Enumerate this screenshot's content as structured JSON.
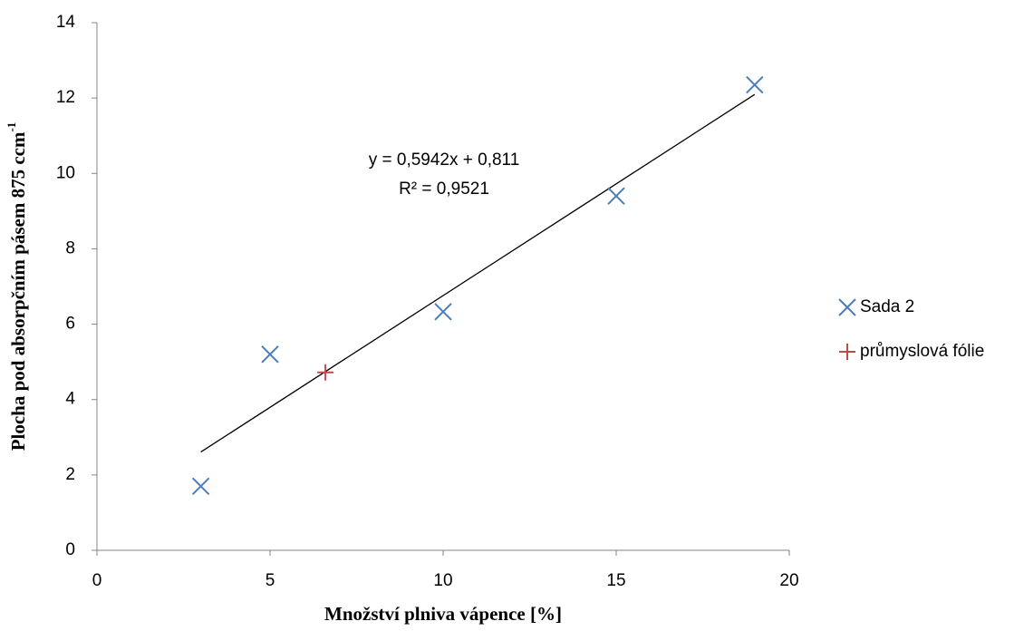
{
  "chart_data": {
    "type": "scatter",
    "xlabel": "Množství plniva vápence [%]",
    "ylabel": "Plocha pod absorpčním pásem 875 ccm",
    "ylabel_superscript": "-1",
    "series": [
      {
        "name": "Sada 2",
        "color": "#4a7ebb",
        "marker": "x",
        "x": [
          3,
          5,
          10,
          15,
          19
        ],
        "values": [
          1.7,
          5.2,
          6.33,
          9.4,
          12.35
        ],
        "trendline": true
      },
      {
        "name": "průmyslová fólie",
        "color": "#be4b48",
        "marker": "+",
        "x": [
          6.6
        ],
        "values": [
          4.72
        ]
      }
    ],
    "annotations": [
      "y = 0,5942x + 0,811",
      "R² = 0,9521"
    ],
    "xlim": [
      0,
      20
    ],
    "xticks": [
      0,
      5,
      10,
      15,
      20
    ],
    "ylim": [
      0,
      14
    ],
    "yticks": [
      0,
      2,
      4,
      6,
      8,
      10,
      12,
      14
    ],
    "grid": false,
    "legend": "right"
  }
}
